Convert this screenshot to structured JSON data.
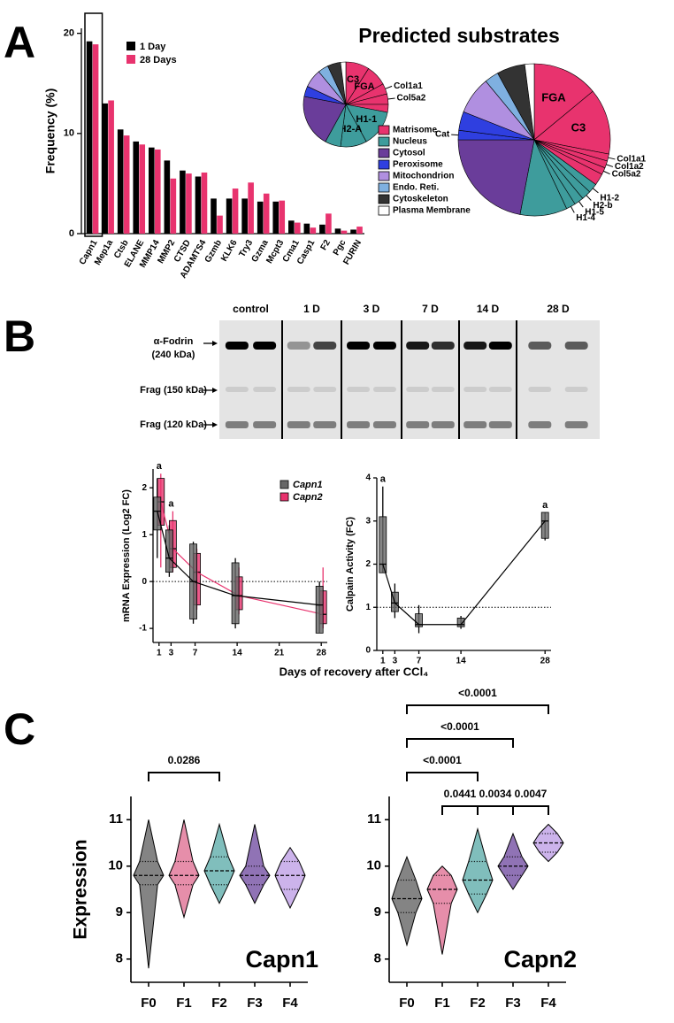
{
  "panels": [
    "A",
    "B",
    "C"
  ],
  "pie_legend": {
    "names": [
      "Matrisome",
      "Nucleus",
      "Cytosol",
      "Peroxisome",
      "Mitochondrion",
      "Endo. Reti.",
      "Cytoskeleton",
      "Plasma Membrane"
    ],
    "colors": [
      "#e8336e",
      "#3e9c9c",
      "#6a3d9a",
      "#2f3fe0",
      "#b08fe0",
      "#7fb0e0",
      "#333333",
      "#ffffff"
    ]
  },
  "blot": {
    "lanes": [
      "control",
      "1 D",
      "3 D",
      "7 D",
      "14 D",
      "28 D"
    ],
    "band_labels": [
      [
        "α-Fodrin",
        "(240 kDa)"
      ],
      [
        "Frag (150 kDa)"
      ],
      [
        "Frag (120 kDa)"
      ]
    ]
  },
  "chart_data": [
    {
      "type": "bar",
      "ylabel": "Frequency (%)",
      "categories": [
        "Capn1",
        "Mep1a",
        "Ctsb",
        "ELANE",
        "MMP14",
        "MMP2",
        "CTSD",
        "ADAMTS4",
        "Gzmb",
        "KLK6",
        "Try3",
        "Gzma",
        "Mcpt3",
        "Cma1",
        "Casp1",
        "F2",
        "Pgc",
        "FURIN"
      ],
      "series": [
        {
          "name": "1 Day",
          "color": "#000000",
          "values": [
            19.2,
            13.0,
            10.4,
            9.2,
            8.6,
            7.3,
            6.3,
            5.7,
            3.5,
            3.5,
            3.5,
            3.2,
            3.2,
            1.3,
            1.0,
            0.9,
            0.5,
            0.4
          ]
        },
        {
          "name": "28 Days",
          "color": "#e8336e",
          "values": [
            18.9,
            13.3,
            9.8,
            8.9,
            8.4,
            5.5,
            6.0,
            6.1,
            1.8,
            4.5,
            5.1,
            4.0,
            3.3,
            1.1,
            0.6,
            2.0,
            0.3,
            0.7
          ]
        }
      ],
      "ylim": [
        0,
        20.5
      ],
      "yticks": [
        0,
        10,
        20
      ]
    },
    {
      "type": "pie",
      "title": "Predicted substrates",
      "categories": [
        "C3",
        "FGA",
        "Col1a1",
        "Col5a2",
        null,
        "H1-1",
        "H2-A",
        null,
        null,
        null,
        null,
        null,
        null,
        null
      ],
      "values": [
        9,
        8,
        4,
        4,
        3,
        14,
        10,
        6,
        20,
        4,
        7,
        4,
        5,
        2
      ],
      "colors": [
        "#e8336e",
        "#e8336e",
        "#e8336e",
        "#e8336e",
        "#e8336e",
        "#3e9c9c",
        "#3e9c9c",
        "#3e9c9c",
        "#6a3d9a",
        "#2f3fe0",
        "#b08fe0",
        "#7fb0e0",
        "#333333",
        "#ffffff"
      ]
    },
    {
      "type": "pie",
      "categories": [
        "FGA",
        "C3",
        "Col1a1",
        "Col1a2",
        "Col5a2",
        null,
        "H1-2",
        "H2-b",
        "H1-5",
        "H1-4",
        null,
        null,
        "Cat",
        null,
        null,
        null,
        null,
        null
      ],
      "values": [
        14,
        14,
        1.5,
        1.5,
        1.5,
        2.5,
        2,
        2,
        2,
        2,
        10,
        22,
        2,
        4,
        8,
        3,
        6,
        2
      ],
      "colors": [
        "#e8336e",
        "#e8336e",
        "#e8336e",
        "#e8336e",
        "#e8336e",
        "#e8336e",
        "#3e9c9c",
        "#3e9c9c",
        "#3e9c9c",
        "#3e9c9c",
        "#3e9c9c",
        "#6a3d9a",
        "#2f3fe0",
        "#2f3fe0",
        "#b08fe0",
        "#7fb0e0",
        "#333333",
        "#ffffff"
      ]
    },
    {
      "type": "box",
      "ylabel": "mRNA Expression (Log2 FC)",
      "xlabel": "Days of recovery after CCl₄",
      "x": [
        1,
        3,
        7,
        14,
        28
      ],
      "xlim": [
        0,
        29
      ],
      "xticks": [
        1,
        3,
        7,
        14,
        21,
        28
      ],
      "ylim": [
        -1.3,
        2.4
      ],
      "yticks": [
        -1,
        0,
        1,
        2
      ],
      "reference_line": 0,
      "series": [
        {
          "name": "Capn2",
          "color": "#e8336e",
          "min": [
            0.3,
            0.2,
            -0.6,
            -0.7,
            -1.0
          ],
          "q1": [
            1.2,
            0.3,
            -0.5,
            -0.6,
            -0.9
          ],
          "median": [
            1.7,
            0.7,
            0.2,
            -0.3,
            -0.7
          ],
          "q3": [
            2.2,
            1.3,
            0.6,
            0.1,
            -0.2
          ],
          "max": [
            2.3,
            1.5,
            0.7,
            0.3,
            0.3
          ]
        },
        {
          "name": "Capn1",
          "color": "#666666",
          "min": [
            0.5,
            0.1,
            -0.9,
            -1.0,
            -1.1
          ],
          "q1": [
            1.1,
            0.2,
            -0.8,
            -0.9,
            -1.1
          ],
          "median": [
            1.5,
            0.5,
            0.0,
            -0.3,
            -0.5
          ],
          "q3": [
            1.8,
            1.1,
            0.8,
            0.4,
            -0.1
          ],
          "max": [
            2.2,
            1.2,
            0.85,
            0.5,
            0.0
          ]
        }
      ],
      "annotations": [
        {
          "x": 1,
          "text": "a"
        },
        {
          "x": 3,
          "text": "a"
        }
      ]
    },
    {
      "type": "box",
      "ylabel": "Calpain Activity  (FC)",
      "x": [
        1,
        3,
        7,
        14,
        28
      ],
      "xlim": [
        0,
        29
      ],
      "xticks": [
        1,
        3,
        7,
        14,
        28
      ],
      "ylim": [
        0,
        4
      ],
      "yticks": [
        0,
        1,
        2,
        3,
        4
      ],
      "reference_line": 1,
      "series": [
        {
          "color": "#666666",
          "min": [
            1.8,
            0.75,
            0.4,
            0.5,
            2.55
          ],
          "q1": [
            1.8,
            0.9,
            0.55,
            0.55,
            2.6
          ],
          "median": [
            2.0,
            1.1,
            0.6,
            0.6,
            3.0
          ],
          "q3": [
            3.1,
            1.35,
            0.85,
            0.75,
            3.2
          ],
          "max": [
            3.8,
            1.55,
            1.05,
            0.8,
            3.2
          ]
        }
      ],
      "annotations": [
        {
          "x": 1,
          "text": "a"
        },
        {
          "x": 28,
          "text": "a"
        }
      ]
    },
    {
      "type": "violin",
      "title": "Capn1",
      "ylabel": "Expression",
      "categories": [
        "F0",
        "F1",
        "F2",
        "F3",
        "F4"
      ],
      "colors": [
        "#6e6e6e",
        "#e27a9b",
        "#6ab3b0",
        "#7d5aa8",
        "#c3a6e8"
      ],
      "min": [
        7.8,
        8.9,
        9.2,
        9.2,
        9.1
      ],
      "q1": [
        9.6,
        9.6,
        9.6,
        9.6,
        9.5
      ],
      "median": [
        9.8,
        9.8,
        9.9,
        9.8,
        9.8
      ],
      "q3": [
        10.1,
        10.1,
        10.2,
        10.0,
        10.1
      ],
      "max": [
        11.0,
        11.0,
        10.9,
        10.9,
        10.4
      ],
      "ylim": [
        7.5,
        11.5
      ],
      "yticks": [
        8,
        9,
        10,
        11
      ],
      "comparisons": [
        {
          "groups": [
            0,
            2
          ],
          "label": "0.0286"
        }
      ]
    },
    {
      "type": "violin",
      "title": "Capn2",
      "categories": [
        "F0",
        "F1",
        "F2",
        "F3",
        "F4"
      ],
      "colors": [
        "#6e6e6e",
        "#e27a9b",
        "#6ab3b0",
        "#7d5aa8",
        "#c3a6e8"
      ],
      "min": [
        8.3,
        8.1,
        9.0,
        9.5,
        10.1
      ],
      "q1": [
        9.0,
        9.2,
        9.4,
        9.8,
        10.3
      ],
      "median": [
        9.3,
        9.5,
        9.7,
        10.0,
        10.5
      ],
      "q3": [
        9.7,
        9.8,
        10.1,
        10.2,
        10.7
      ],
      "max": [
        10.2,
        10.0,
        10.8,
        10.7,
        10.9
      ],
      "ylim": [
        7.5,
        11.5
      ],
      "yticks": [
        8,
        9,
        10,
        11
      ],
      "comparisons": [
        {
          "groups": [
            1,
            2
          ],
          "label": "0.0441"
        },
        {
          "groups": [
            2,
            3
          ],
          "label": "0.0034"
        },
        {
          "groups": [
            3,
            4
          ],
          "label": "0.0047"
        },
        {
          "groups": [
            0,
            2
          ],
          "label": "<0.0001"
        },
        {
          "groups": [
            0,
            3
          ],
          "label": "<0.0001"
        },
        {
          "groups": [
            0,
            4
          ],
          "label": "<0.0001"
        }
      ]
    }
  ]
}
